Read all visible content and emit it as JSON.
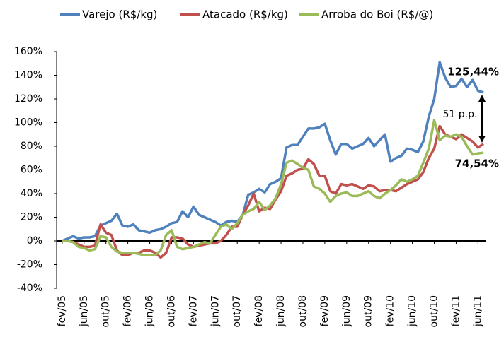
{
  "chart_data": {
    "type": "line",
    "categories": [
      "fev/05",
      null,
      null,
      null,
      "jun/05",
      null,
      null,
      null,
      "out/05",
      null,
      null,
      null,
      "fev/06",
      null,
      null,
      null,
      "jun/06",
      null,
      null,
      null,
      "out/06",
      null,
      null,
      null,
      "fev/07",
      null,
      null,
      null,
      "jun/07",
      null,
      null,
      null,
      "out/07",
      null,
      null,
      null,
      "fev/08",
      null,
      null,
      null,
      "jun/08",
      null,
      null,
      null,
      "out/08",
      null,
      null,
      null,
      "fev/09",
      null,
      null,
      null,
      "jun/09",
      null,
      null,
      null,
      "out/09",
      null,
      null,
      null,
      "fev/10",
      null,
      null,
      null,
      "jun/10",
      null,
      null,
      null,
      "out/10",
      null,
      null,
      null,
      "fev/11",
      null,
      null,
      null,
      "jun/11",
      null
    ],
    "series": [
      {
        "name": "Varejo (R$/kg)",
        "color": "#4f81bd",
        "values": [
          0,
          2,
          4,
          2,
          3,
          3,
          4,
          13,
          15,
          17,
          23,
          13,
          12,
          14,
          9,
          8,
          7,
          9,
          10,
          12,
          15,
          16,
          25,
          20,
          29,
          22,
          20,
          18,
          16,
          13,
          16,
          17,
          16,
          22,
          39,
          41,
          44,
          41,
          48,
          50,
          53,
          79,
          81,
          81,
          88,
          95,
          95,
          96,
          99,
          85,
          73,
          82,
          82,
          78,
          80,
          82,
          87,
          80,
          85,
          90,
          67,
          70,
          72,
          78,
          77,
          75,
          84,
          105,
          120,
          151,
          138,
          130,
          131,
          137,
          130,
          136,
          127,
          125.44
        ],
        "value_labels": [
          null,
          null,
          null,
          null,
          null,
          null,
          null,
          null,
          null,
          null,
          null,
          null,
          null,
          null,
          null,
          null,
          null,
          null,
          null,
          null,
          null,
          null,
          null,
          null,
          null,
          null,
          null,
          null,
          null,
          null,
          null,
          null,
          null,
          null,
          null,
          null,
          null,
          null,
          null,
          null,
          null,
          null,
          null,
          null,
          null,
          null,
          null,
          null,
          null,
          null,
          null,
          null,
          null,
          null,
          null,
          null,
          null,
          null,
          null,
          null,
          null,
          null,
          null,
          null,
          null,
          null,
          null,
          null,
          null,
          null,
          null,
          null,
          null,
          null,
          null,
          null,
          null,
          "125,44%"
        ]
      },
      {
        "name": "Atacado (R$/kg)",
        "color": "#c0504d",
        "values": [
          0,
          0,
          -1,
          -3,
          -5,
          -5,
          -4,
          14,
          7,
          5,
          -8,
          -12,
          -12,
          -10,
          -10,
          -8,
          -8,
          -10,
          -14,
          -10,
          3,
          3,
          2,
          -3,
          -5,
          -4,
          -3,
          -2,
          -2,
          0,
          5,
          12,
          12,
          22,
          30,
          40,
          25,
          28,
          27,
          35,
          42,
          55,
          57,
          60,
          61,
          69,
          65,
          55,
          55,
          42,
          40,
          48,
          47,
          48,
          46,
          44,
          47,
          46,
          42,
          43,
          43,
          42,
          45,
          48,
          50,
          52,
          58,
          70,
          78,
          97,
          90,
          88,
          86,
          90,
          87,
          84,
          79,
          82
        ]
      },
      {
        "name": "Arroba do Boi (R$/@)",
        "color": "#9bbb59",
        "values": [
          0,
          0,
          -1,
          -5,
          -6,
          -8,
          -7,
          4,
          3,
          -5,
          -9,
          -10,
          -10,
          -10,
          -11,
          -12,
          -12,
          -12,
          -8,
          5,
          9,
          -5,
          -7,
          -6,
          -5,
          -3,
          -1,
          -2,
          5,
          12,
          14,
          10,
          15,
          22,
          25,
          27,
          33,
          26,
          30,
          36,
          48,
          66,
          68,
          65,
          62,
          60,
          46,
          44,
          40,
          33,
          38,
          40,
          41,
          38,
          38,
          40,
          42,
          38,
          36,
          40,
          43,
          47,
          52,
          50,
          52,
          55,
          66,
          78,
          102,
          85,
          89,
          88,
          90,
          88,
          80,
          73,
          74,
          74.54
        ],
        "value_labels": [
          null,
          null,
          null,
          null,
          null,
          null,
          null,
          null,
          null,
          null,
          null,
          null,
          null,
          null,
          null,
          null,
          null,
          null,
          null,
          null,
          null,
          null,
          null,
          null,
          null,
          null,
          null,
          null,
          null,
          null,
          null,
          null,
          null,
          null,
          null,
          null,
          null,
          null,
          null,
          null,
          null,
          null,
          null,
          null,
          null,
          null,
          null,
          null,
          null,
          null,
          null,
          null,
          null,
          null,
          null,
          null,
          null,
          null,
          null,
          null,
          null,
          null,
          null,
          null,
          null,
          null,
          null,
          null,
          null,
          null,
          null,
          null,
          null,
          null,
          null,
          null,
          null,
          "74,54%"
        ]
      }
    ],
    "annotation": "51 p.p.",
    "ylim": [
      -40,
      160
    ],
    "yticks": [
      {
        "value": -40,
        "label": "-40%"
      },
      {
        "value": -20,
        "label": "-20%"
      },
      {
        "value": 0,
        "label": "0%"
      },
      {
        "value": 20,
        "label": "20%"
      },
      {
        "value": 40,
        "label": "40%"
      },
      {
        "value": 60,
        "label": "60%"
      },
      {
        "value": 80,
        "label": "80%"
      },
      {
        "value": 100,
        "label": "100%"
      },
      {
        "value": 120,
        "label": "120%"
      },
      {
        "value": 140,
        "label": "140%"
      },
      {
        "value": 160,
        "label": "160%"
      }
    ],
    "grid": false,
    "legend": "top"
  }
}
